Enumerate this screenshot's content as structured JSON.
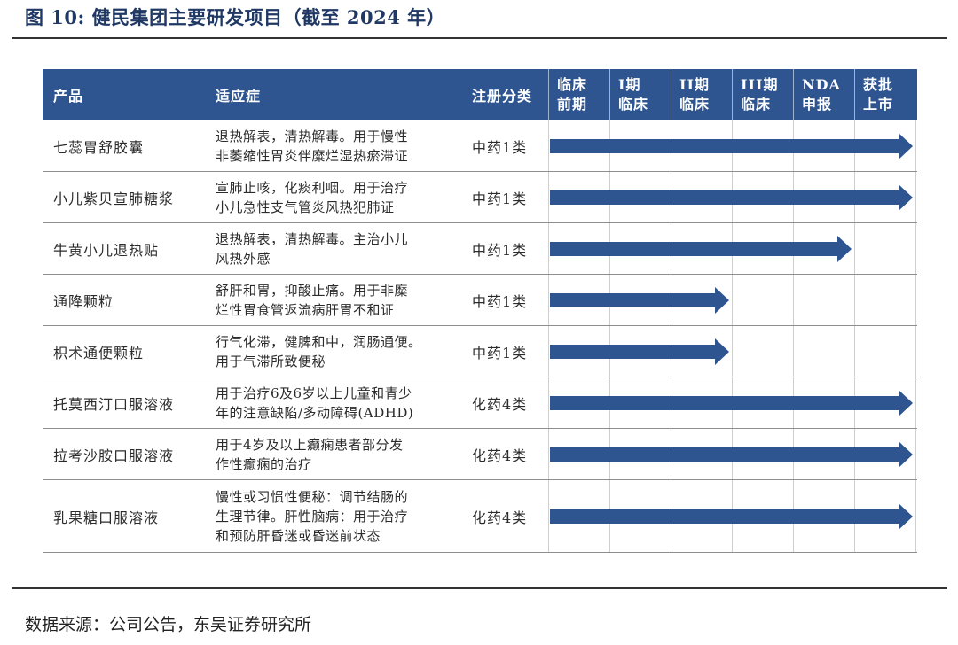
{
  "figure": {
    "title": "图 10:  健民集团主要研发项目（截至 2024 年）",
    "source": "数据来源：公司公告，东吴证券研究所"
  },
  "table": {
    "headers": {
      "product": "产品",
      "indication": "适应症",
      "category": "注册分类",
      "stages": [
        "临床\n前期",
        "I期\n临床",
        "II期\n临床",
        "III期\n临床",
        "NDA\n申报",
        "获批\n上市"
      ]
    },
    "arrow_color": "#2e5590",
    "rows": [
      {
        "product": "七蕊胃舒胶囊",
        "indication": "退热解表，清热解毒。用于慢性\n非萎缩性胃炎伴糜烂湿热瘀滞证",
        "category": "中药1类",
        "progress_stage": 6
      },
      {
        "product": "小儿紫贝宣肺糖浆",
        "indication": "宣肺止咳，化痰利咽。用于治疗\n小儿急性支气管炎风热犯肺证",
        "category": "中药1类",
        "progress_stage": 6
      },
      {
        "product": "牛黄小儿退热贴",
        "indication": "退热解表，清热解毒。主治小儿\n风热外感",
        "category": "中药1类",
        "progress_stage": 5
      },
      {
        "product": "通降颗粒",
        "indication": "舒肝和胃，抑酸止痛。用于非糜\n烂性胃食管返流病肝胃不和证",
        "category": "中药1类",
        "progress_stage": 3
      },
      {
        "product": "枳术通便颗粒",
        "indication": "行气化滞，健脾和中，润肠通便。\n用于气滞所致便秘",
        "category": "中药1类",
        "progress_stage": 3
      },
      {
        "product": "托莫西汀口服溶液",
        "indication": "用于治疗6及6岁以上儿童和青少\n年的注意缺陷/多动障碍(ADHD)",
        "category": "化药4类",
        "progress_stage": 6
      },
      {
        "product": "拉考沙胺口服溶液",
        "indication": "用于4岁及以上癫痫患者部分发\n作性癫痫的治疗",
        "category": "化药4类",
        "progress_stage": 6
      },
      {
        "product": "乳果糖口服溶液",
        "indication": "慢性或习惯性便秘：调节结肠的\n生理节律。肝性脑病：用于治疗\n和预防肝昏迷或昏迷前状态",
        "category": "化药4类",
        "progress_stage": 6
      }
    ]
  }
}
